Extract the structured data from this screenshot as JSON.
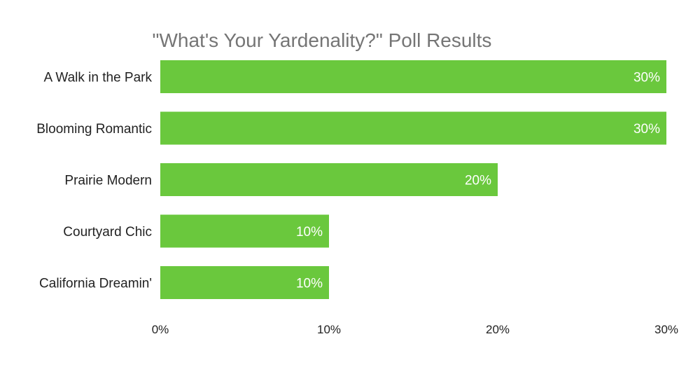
{
  "chart_data": {
    "type": "bar",
    "orientation": "horizontal",
    "title": "\"What's Your Yardenality?\" Poll Results",
    "xlabel": "",
    "ylabel": "",
    "categories": [
      "A Walk in the Park",
      "Blooming Romantic",
      "Prairie Modern",
      "Courtyard Chic",
      "California Dreamin'"
    ],
    "values": [
      30,
      30,
      20,
      10,
      10
    ],
    "value_labels": [
      "30%",
      "30%",
      "20%",
      "10%",
      "10%"
    ],
    "xlim": [
      0,
      30
    ],
    "xticks": [
      0,
      10,
      20,
      30
    ],
    "xtick_labels": [
      "0%",
      "10%",
      "20%",
      "30%"
    ],
    "grid": false,
    "legend": "none",
    "colors": {
      "bar": "#6ac83d",
      "bar_label": "#ffffff",
      "title": "#757575",
      "text": "#222222"
    }
  }
}
